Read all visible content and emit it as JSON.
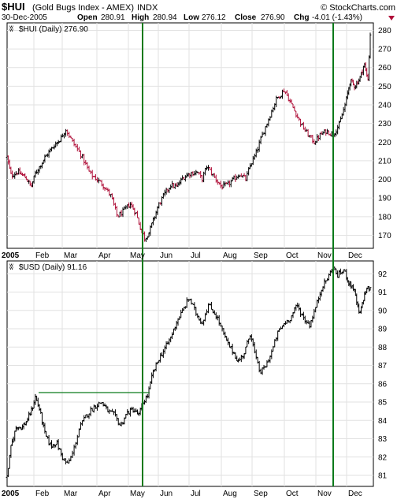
{
  "header": {
    "symbol": "$HUI",
    "name": "(Gold Bugs Index - AMEX)",
    "exchange": "INDX",
    "watermark": "© StockCharts.com",
    "date": "30-Dec-2005",
    "open_label": "Open",
    "open": "280.91",
    "high_label": "High",
    "high": "280.94",
    "low_label": "Low",
    "low": "276.12",
    "close_label": "Close",
    "close": "276.90",
    "chg_label": "Chg",
    "chg": "-4.01 (-1.43%)"
  },
  "chart_data": [
    {
      "type": "bar",
      "legend": "$HUI (Daily) 276.90",
      "series_color": "#b0113a",
      "y_ticks": [
        170,
        180,
        190,
        200,
        210,
        220,
        230,
        240,
        250,
        260,
        270,
        280
      ],
      "ylim": [
        163,
        284
      ],
      "x_ticks": [
        "2005",
        "Feb",
        "Mar",
        "Apr",
        "May",
        "Jun",
        "Jul",
        "Aug",
        "Sep",
        "Oct",
        "Nov",
        "Dec"
      ],
      "xlim": [
        0,
        12
      ],
      "anchors": [
        [
          0.0,
          212
        ],
        [
          0.15,
          202
        ],
        [
          0.4,
          204
        ],
        [
          0.7,
          201
        ],
        [
          0.9,
          196
        ],
        [
          1.05,
          203
        ],
        [
          1.4,
          212
        ],
        [
          1.7,
          218
        ],
        [
          1.95,
          222
        ],
        [
          2.1,
          227
        ],
        [
          2.3,
          220
        ],
        [
          2.55,
          213
        ],
        [
          2.8,
          203
        ],
        [
          3.0,
          200
        ],
        [
          3.2,
          197
        ],
        [
          3.45,
          191
        ],
        [
          3.65,
          180
        ],
        [
          3.85,
          183
        ],
        [
          4.05,
          187
        ],
        [
          4.25,
          182
        ],
        [
          4.4,
          174
        ],
        [
          4.55,
          168
        ],
        [
          4.7,
          172
        ],
        [
          4.85,
          179
        ],
        [
          5.0,
          186
        ],
        [
          5.2,
          192
        ],
        [
          5.4,
          197
        ],
        [
          5.6,
          196
        ],
        [
          5.8,
          201
        ],
        [
          6.0,
          203
        ],
        [
          6.25,
          204
        ],
        [
          6.4,
          200
        ],
        [
          6.55,
          207
        ],
        [
          6.75,
          202
        ],
        [
          7.0,
          196
        ],
        [
          7.2,
          197
        ],
        [
          7.4,
          200
        ],
        [
          7.6,
          203
        ],
        [
          7.8,
          200
        ],
        [
          7.95,
          208
        ],
        [
          8.1,
          213
        ],
        [
          8.3,
          223
        ],
        [
          8.5,
          232
        ],
        [
          8.75,
          243
        ],
        [
          9.0,
          248
        ],
        [
          9.2,
          241
        ],
        [
          9.35,
          236
        ],
        [
          9.55,
          229
        ],
        [
          9.75,
          224
        ],
        [
          9.95,
          220
        ],
        [
          10.15,
          224
        ],
        [
          10.35,
          226
        ],
        [
          10.55,
          224
        ],
        [
          10.75,
          229
        ],
        [
          10.95,
          240
        ],
        [
          11.15,
          253
        ],
        [
          11.35,
          250
        ],
        [
          11.55,
          254
        ],
        [
          11.75,
          262
        ],
        [
          11.9,
          253
        ],
        [
          12.0,
          278
        ]
      ]
    },
    {
      "type": "bar",
      "legend": "$USD (Daily) 91.16",
      "series_color": "#000000",
      "y_ticks": [
        81,
        82,
        83,
        84,
        85,
        86,
        87,
        88,
        89,
        90,
        91,
        92
      ],
      "ylim": [
        80.4,
        92.7
      ],
      "x_ticks": [
        "2005",
        "Feb",
        "Mar",
        "Apr",
        "May",
        "Jun",
        "Jul",
        "Aug",
        "Sep",
        "Oct",
        "Nov",
        "Dec"
      ],
      "xlim": [
        0,
        12
      ],
      "anchors": [
        [
          0.0,
          80.9
        ],
        [
          0.15,
          82.6
        ],
        [
          0.35,
          83.7
        ],
        [
          0.55,
          83.6
        ],
        [
          0.75,
          84.0
        ],
        [
          0.95,
          84.7
        ],
        [
          1.05,
          85.3
        ],
        [
          1.2,
          84.6
        ],
        [
          1.4,
          83.2
        ],
        [
          1.6,
          82.6
        ],
        [
          1.8,
          82.8
        ],
        [
          2.0,
          82.0
        ],
        [
          2.15,
          81.6
        ],
        [
          2.3,
          82.2
        ],
        [
          2.5,
          83.6
        ],
        [
          2.7,
          84.3
        ],
        [
          2.95,
          84.8
        ],
        [
          3.15,
          85.0
        ],
        [
          3.35,
          84.5
        ],
        [
          3.55,
          84.3
        ],
        [
          3.75,
          83.7
        ],
        [
          3.95,
          84.4
        ],
        [
          4.15,
          84.6
        ],
        [
          4.35,
          84.3
        ],
        [
          4.5,
          85.0
        ],
        [
          4.65,
          85.4
        ],
        [
          4.8,
          86.5
        ],
        [
          5.0,
          87.3
        ],
        [
          5.2,
          87.9
        ],
        [
          5.4,
          88.5
        ],
        [
          5.6,
          89.4
        ],
        [
          5.8,
          90.0
        ],
        [
          6.0,
          90.7
        ],
        [
          6.2,
          89.9
        ],
        [
          6.4,
          89.3
        ],
        [
          6.6,
          90.3
        ],
        [
          6.85,
          89.7
        ],
        [
          7.05,
          88.8
        ],
        [
          7.2,
          88.2
        ],
        [
          7.4,
          87.7
        ],
        [
          7.55,
          87.2
        ],
        [
          7.75,
          87.7
        ],
        [
          7.95,
          88.8
        ],
        [
          8.1,
          87.5
        ],
        [
          8.25,
          86.6
        ],
        [
          8.4,
          86.9
        ],
        [
          8.6,
          87.7
        ],
        [
          8.8,
          88.8
        ],
        [
          9.0,
          89.3
        ],
        [
          9.2,
          89.6
        ],
        [
          9.4,
          90.3
        ],
        [
          9.6,
          89.6
        ],
        [
          9.8,
          89.2
        ],
        [
          10.0,
          90.2
        ],
        [
          10.2,
          91.3
        ],
        [
          10.4,
          91.8
        ],
        [
          10.55,
          92.4
        ],
        [
          10.7,
          91.9
        ],
        [
          10.9,
          92.2
        ],
        [
          11.1,
          91.5
        ],
        [
          11.3,
          91.2
        ],
        [
          11.45,
          90.3
        ],
        [
          11.55,
          89.7
        ],
        [
          11.7,
          90.6
        ],
        [
          11.85,
          91.2
        ],
        [
          12.0,
          91.16
        ]
      ]
    }
  ]
}
